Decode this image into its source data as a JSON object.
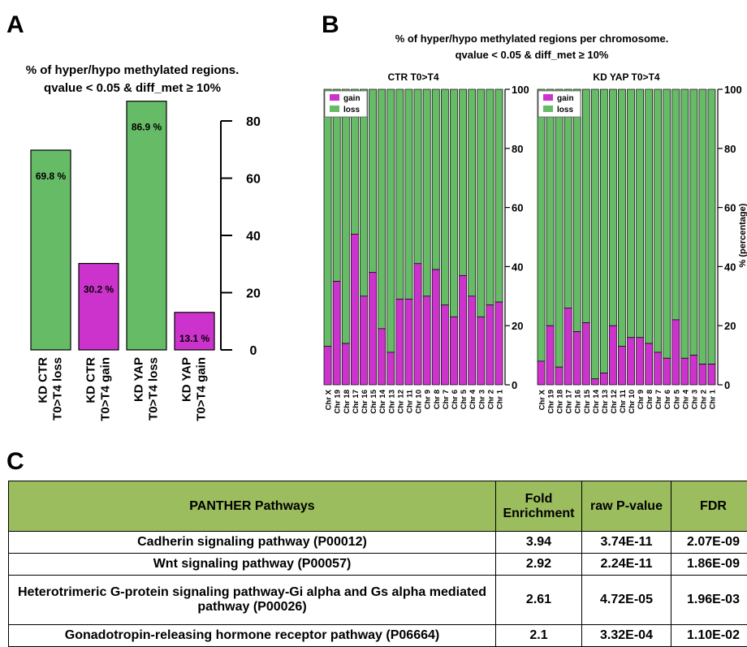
{
  "panels": {
    "a_letter": "A",
    "b_letter": "B",
    "c_letter": "C"
  },
  "panel_a": {
    "title_line1": "% of hyper/hypo methylated regions.",
    "title_line2": "qvalue < 0.05 & diff_met ≥ 10%"
  },
  "panel_b": {
    "title_line1": "% of hyper/hypo methylated regions per chromosome.",
    "title_line2": "qvalue < 0.05 & diff_met ≥ 10%",
    "ylabel_fragment": "% (percentage)"
  },
  "colors": {
    "gain": "#cc33cc",
    "loss": "#66bb66",
    "header": "#9bbd5e"
  },
  "chart_data": [
    {
      "type": "bar",
      "categories": [
        [
          "KD CTR",
          "T0>T4 loss"
        ],
        [
          "KD CTR",
          "T0>T4 gain"
        ],
        [
          "KD YAP",
          "T0>T4 loss"
        ],
        [
          "KD YAP",
          "T0>T4 gain"
        ]
      ],
      "values": [
        69.8,
        30.2,
        86.9,
        13.1
      ],
      "data_labels": [
        "69.8 %",
        "30.2 %",
        "86.9 %",
        "13.1 %"
      ],
      "bar_kind": [
        "loss",
        "gain",
        "loss",
        "gain"
      ],
      "ylim": [
        0,
        80
      ],
      "yticks": [
        0,
        20,
        40,
        60,
        80
      ],
      "axis_side": "right"
    },
    {
      "type": "bar",
      "stacked": true,
      "title": "CTR T0>T4",
      "categories": [
        "Chr X",
        "Chr 19",
        "Chr 18",
        "Chr 17",
        "Chr 16",
        "Chr 15",
        "Chr 14",
        "Chr 13",
        "Chr 12",
        "Chr 11",
        "Chr 10",
        "Chr 9",
        "Chr 8",
        "Chr 7",
        "Chr 6",
        "Chr 5",
        "Chr 4",
        "Chr 3",
        "Chr 2",
        "Chr 1"
      ],
      "series": [
        {
          "name": "gain",
          "values": [
            13,
            35,
            14,
            51,
            30,
            38,
            19,
            11,
            29,
            29,
            41,
            30,
            39,
            27,
            23,
            37,
            30,
            23,
            27,
            28
          ]
        },
        {
          "name": "loss",
          "values": [
            87,
            65,
            86,
            49,
            70,
            62,
            81,
            89,
            71,
            71,
            59,
            70,
            61,
            73,
            77,
            63,
            70,
            77,
            73,
            72
          ]
        }
      ],
      "ylim": [
        0,
        100
      ],
      "yticks": [
        0,
        20,
        40,
        60,
        80,
        100
      ],
      "legend": "top-left"
    },
    {
      "type": "bar",
      "stacked": true,
      "title": "KD YAP T0>T4",
      "categories": [
        "Chr X",
        "Chr 19",
        "Chr 18",
        "Chr 17",
        "Chr 16",
        "Chr 15",
        "Chr 14",
        "Chr 13",
        "Chr 12",
        "Chr 11",
        "Chr 10",
        "Chr 9",
        "Chr 8",
        "Chr 7",
        "Chr 6",
        "Chr 5",
        "Chr 4",
        "Chr 3",
        "Chr 2",
        "Chr 1"
      ],
      "series": [
        {
          "name": "gain",
          "values": [
            8,
            20,
            6,
            26,
            18,
            21,
            2,
            4,
            20,
            13,
            16,
            16,
            14,
            11,
            9,
            22,
            9,
            10,
            7,
            7
          ]
        },
        {
          "name": "loss",
          "values": [
            92,
            80,
            94,
            74,
            82,
            79,
            98,
            96,
            80,
            87,
            84,
            84,
            86,
            89,
            91,
            78,
            91,
            90,
            93,
            93
          ]
        }
      ],
      "ylim": [
        0,
        100
      ],
      "yticks": [
        0,
        20,
        40,
        60,
        80,
        100
      ],
      "legend": "top-left"
    },
    {
      "type": "table",
      "columns": [
        "PANTHER Pathways",
        "Fold Enrichment",
        "raw P-value",
        "FDR"
      ],
      "rows": [
        [
          "Cadherin signaling pathway (P00012)",
          "3.94",
          "3.74E-11",
          "2.07E-09"
        ],
        [
          "Wnt signaling pathway (P00057)",
          "2.92",
          "2.24E-11",
          "1.86E-09"
        ],
        [
          "Heterotrimeric G-protein signaling pathway-Gi alpha and Gs alpha mediated pathway (P00026)",
          "2.61",
          "4.72E-05",
          "1.96E-03"
        ],
        [
          "Gonadotropin-releasing hormone receptor pathway (P06664)",
          "2.1",
          "3.32E-04",
          "1.10E-02"
        ]
      ]
    }
  ]
}
